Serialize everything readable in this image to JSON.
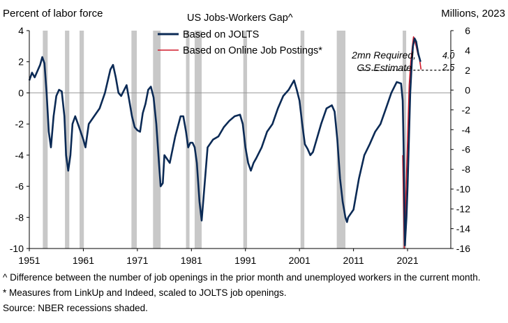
{
  "chart_data": {
    "type": "line",
    "title": "US Jobs-Workers Gap^",
    "ylabel_left": "Percent of labor force",
    "ylabel_right": "Millions,  2023",
    "ylim_left": [
      -10,
      4
    ],
    "ylim_right": [
      -16,
      6
    ],
    "yticks_left": [
      4,
      2,
      0,
      -2,
      -4,
      -6,
      -8,
      -10
    ],
    "yticks_right": [
      6,
      4,
      2,
      0,
      -2,
      -4,
      -6,
      -8,
      -10,
      -12,
      -14,
      -16
    ],
    "xlim": [
      1951,
      2029
    ],
    "xticks": [
      1951,
      1961,
      1971,
      1981,
      1991,
      2001,
      2011,
      2021
    ],
    "recessions": [
      [
        1953.5,
        1954.4
      ],
      [
        1957.6,
        1958.4
      ],
      [
        1960.3,
        1961.1
      ],
      [
        1969.9,
        1970.9
      ],
      [
        1973.9,
        1975.3
      ],
      [
        1980.0,
        1980.6
      ],
      [
        1981.6,
        1982.9
      ],
      [
        1990.6,
        1991.3
      ],
      [
        2001.2,
        2001.9
      ],
      [
        2007.9,
        2009.5
      ],
      [
        2020.1,
        2020.4
      ]
    ],
    "series": [
      {
        "name": "Based on JOLTS",
        "axis": "left",
        "color": "#0b2a55",
        "x": [
          1951.0,
          1951.5,
          1952.0,
          1952.5,
          1953.0,
          1953.4,
          1953.8,
          1954.2,
          1954.6,
          1955.0,
          1955.5,
          1956.0,
          1956.5,
          1957.0,
          1957.5,
          1957.8,
          1958.2,
          1958.6,
          1959.0,
          1959.5,
          1960.0,
          1960.5,
          1961.0,
          1961.4,
          1962.0,
          1963.0,
          1964.0,
          1965.0,
          1966.0,
          1966.5,
          1967.0,
          1967.5,
          1968.0,
          1969.0,
          1969.5,
          1970.0,
          1970.5,
          1971.0,
          1971.5,
          1972.0,
          1972.5,
          1973.0,
          1973.5,
          1974.0,
          1974.5,
          1975.0,
          1975.3,
          1975.7,
          1976.0,
          1977.0,
          1978.0,
          1979.0,
          1979.5,
          1980.0,
          1980.4,
          1980.8,
          1981.2,
          1981.6,
          1982.0,
          1982.5,
          1982.9,
          1983.3,
          1984.0,
          1985.0,
          1986.0,
          1987.0,
          1988.0,
          1989.0,
          1990.0,
          1990.5,
          1991.0,
          1991.5,
          1992.0,
          1992.5,
          1993.0,
          1994.0,
          1995.0,
          1996.0,
          1997.0,
          1998.0,
          1999.0,
          2000.0,
          2000.5,
          2001.0,
          2001.5,
          2002.0,
          2002.5,
          2003.0,
          2003.5,
          2004.0,
          2005.0,
          2006.0,
          2007.0,
          2007.5,
          2008.0,
          2008.5,
          2009.0,
          2009.5,
          2009.8,
          2010.0,
          2011.0,
          2012.0,
          2013.0,
          2014.0,
          2015.0,
          2016.0,
          2017.0,
          2018.0,
          2019.0,
          2019.8,
          2020.1,
          2020.3,
          2020.5,
          2020.8,
          2021.0,
          2021.5,
          2021.8,
          2022.0,
          2022.3,
          2022.6,
          2023.0,
          2023.4
        ],
        "y": [
          0.8,
          1.3,
          1.0,
          1.4,
          1.8,
          2.3,
          1.9,
          0.0,
          -2.5,
          -3.5,
          -1.5,
          -0.2,
          0.2,
          0.1,
          -1.5,
          -4.0,
          -5.0,
          -4.0,
          -2.0,
          -1.5,
          -2.0,
          -2.5,
          -3.0,
          -3.5,
          -2.0,
          -1.5,
          -1.0,
          0.0,
          1.5,
          1.8,
          1.0,
          0.0,
          -0.2,
          0.5,
          -0.5,
          -1.5,
          -2.2,
          -2.4,
          -2.5,
          -1.3,
          -0.7,
          0.2,
          0.4,
          -0.3,
          -2.0,
          -4.5,
          -6.0,
          -5.8,
          -4.0,
          -4.5,
          -2.8,
          -1.5,
          -1.5,
          -2.5,
          -3.5,
          -3.2,
          -3.2,
          -3.5,
          -4.5,
          -7.0,
          -8.2,
          -6.5,
          -3.5,
          -3.0,
          -2.8,
          -2.2,
          -1.8,
          -1.5,
          -1.4,
          -2.0,
          -3.5,
          -4.5,
          -5.0,
          -4.5,
          -4.2,
          -3.5,
          -2.5,
          -2.0,
          -1.0,
          -0.2,
          0.2,
          0.8,
          0.2,
          -0.5,
          -2.0,
          -3.3,
          -3.6,
          -4.0,
          -3.8,
          -3.2,
          -2.0,
          -1.0,
          -0.8,
          -1.2,
          -3.0,
          -5.5,
          -7.0,
          -8.0,
          -8.3,
          -8.0,
          -7.5,
          -5.5,
          -4.0,
          -3.3,
          -2.5,
          -2.0,
          -1.0,
          0.0,
          0.7,
          0.6,
          -0.5,
          -4.0,
          -9.8,
          -8.0,
          -6.0,
          0.0,
          2.0,
          3.0,
          3.5,
          3.3,
          2.5,
          2.0
        ]
      },
      {
        "name": "Based on Online Job Postings*",
        "axis": "left",
        "color": "#d11a2a",
        "x": [
          2020.1,
          2020.4,
          2020.7,
          2021.0,
          2021.3,
          2021.6,
          2021.9,
          2022.1,
          2022.3,
          2022.6,
          2022.9,
          2023.2,
          2023.5
        ],
        "y": [
          -4.0,
          -10.0,
          -6.5,
          -3.0,
          0.5,
          2.0,
          3.0,
          3.6,
          3.4,
          3.0,
          2.5,
          2.2,
          1.5
        ]
      }
    ],
    "annotations": {
      "required_line": "2mn Required,",
      "required_line2": "GS Estimate",
      "latest_jolts": "4.0",
      "latest_postings": "2.5"
    },
    "legend_position": "top-center"
  },
  "notes": {
    "note1": "^ Difference between the number of job openings in the prior month and unemployed workers in the current month.",
    "note2": "* Measures from LinkUp and Indeed, scaled to JOLTS job openings.",
    "note3": "Source: NBER recessions shaded."
  }
}
